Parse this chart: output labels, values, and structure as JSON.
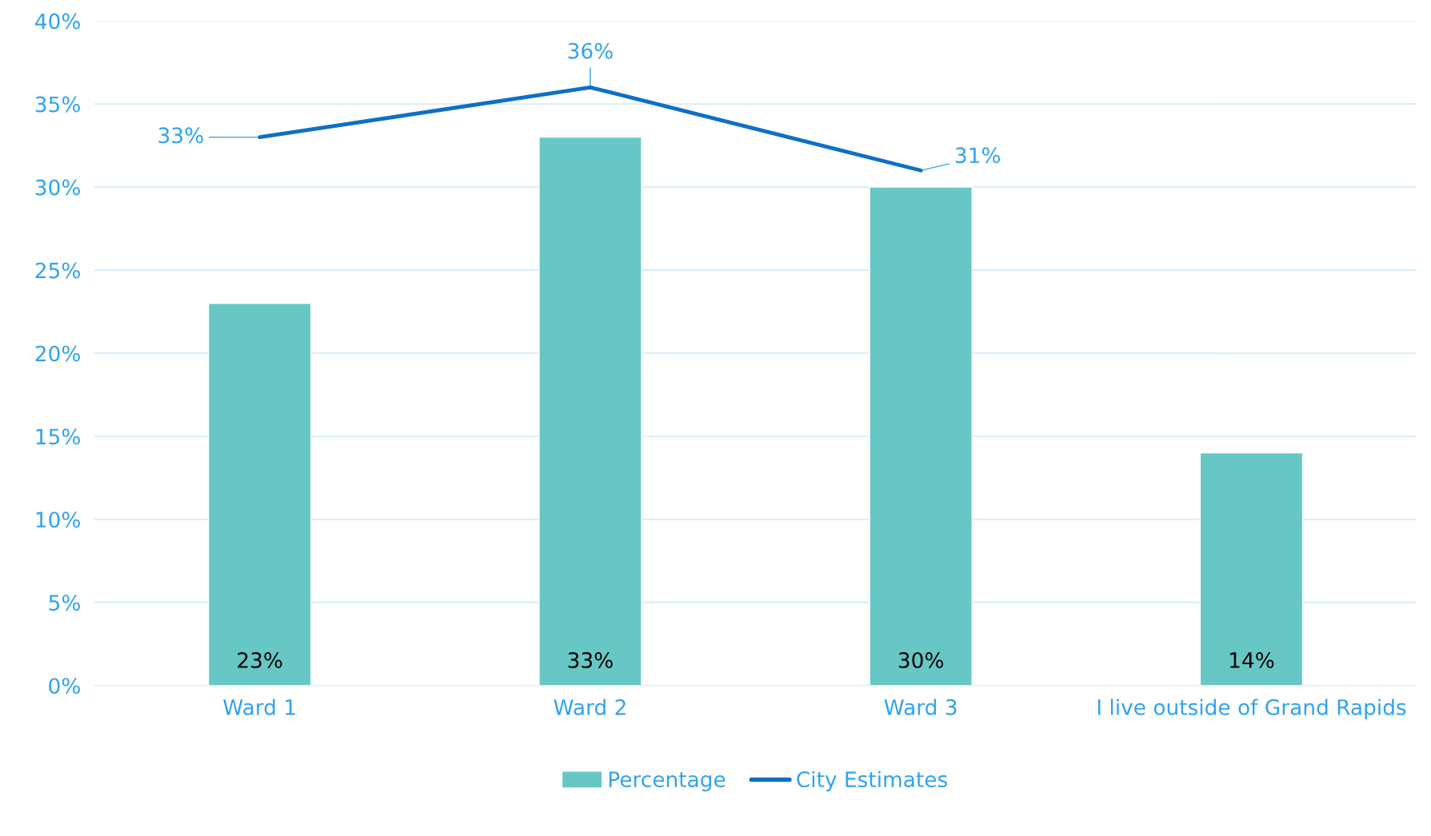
{
  "chart_data": {
    "type": "bar",
    "categories": [
      "Ward 1",
      "Ward 2",
      "Ward 3",
      "I live outside of Grand Rapids"
    ],
    "series": [
      {
        "name": "Percentage",
        "color": "#67c7c4",
        "values": [
          23,
          33,
          30,
          14
        ],
        "value_labels": [
          "23%",
          "33%",
          "30%",
          "14%"
        ]
      },
      {
        "name": "City Estimates",
        "type": "line",
        "color": "#0f6fc6",
        "values": [
          33,
          36,
          31,
          null
        ],
        "value_labels": [
          "33%",
          "36%",
          "31%",
          null
        ]
      }
    ],
    "ylim": [
      0,
      40
    ],
    "yticks": [
      {
        "value": 0,
        "label": "0%"
      },
      {
        "value": 5,
        "label": "5%"
      },
      {
        "value": 10,
        "label": "10%"
      },
      {
        "value": 15,
        "label": "15%"
      },
      {
        "value": 20,
        "label": "20%"
      },
      {
        "value": 25,
        "label": "25%"
      },
      {
        "value": 30,
        "label": "30%"
      },
      {
        "value": 35,
        "label": "35%"
      },
      {
        "value": 40,
        "label": "40%"
      }
    ],
    "grid": "y",
    "legend": "bottom"
  }
}
